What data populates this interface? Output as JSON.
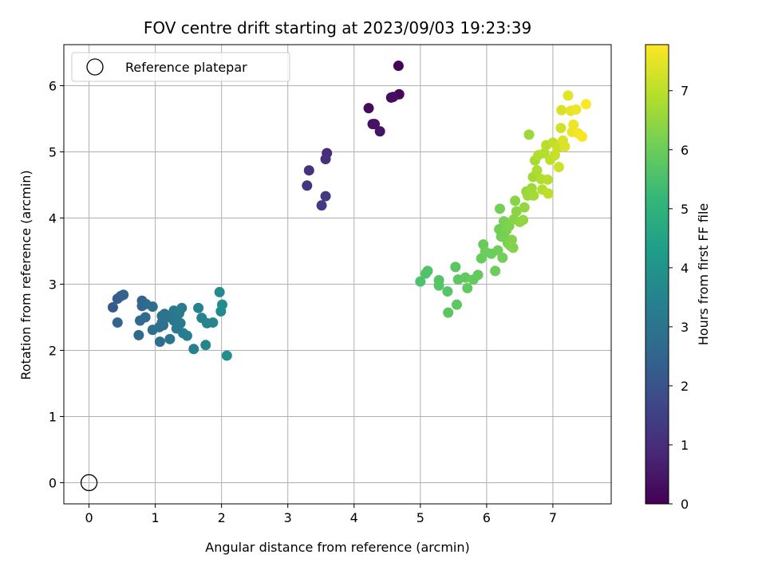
{
  "chart_data": {
    "type": "scatter",
    "title": "FOV centre drift starting at 2023/09/03 19:23:39",
    "xlabel": "Angular distance from reference (arcmin)",
    "ylabel": "Rotation from reference (arcmin)",
    "xlim": [
      -0.38,
      7.88
    ],
    "ylim": [
      -0.32,
      6.62
    ],
    "xticks": [
      "0",
      "1",
      "2",
      "3",
      "4",
      "5",
      "6",
      "7"
    ],
    "yticks": [
      "0",
      "1",
      "2",
      "3",
      "4",
      "5",
      "6"
    ],
    "grid": true,
    "legend": {
      "position": "top-left",
      "entries": [
        {
          "label": "Reference platepar",
          "marker": "open-circle",
          "x": 0,
          "y": 0
        }
      ]
    },
    "colorbar": {
      "label": "Hours from first FF file",
      "colormap": "viridis",
      "range": [
        0,
        7.78
      ],
      "ticks": [
        "0",
        "1",
        "2",
        "3",
        "4",
        "5",
        "6",
        "7"
      ]
    },
    "series": [
      {
        "points": [
          {
            "x": 4.22,
            "y": 5.66,
            "c": 0.2
          },
          {
            "x": 4.67,
            "y": 6.3,
            "c": 0.05
          },
          {
            "x": 4.28,
            "y": 5.42,
            "c": 0.35
          },
          {
            "x": 4.31,
            "y": 5.42,
            "c": 0.38
          },
          {
            "x": 4.39,
            "y": 5.31,
            "c": 0.42
          },
          {
            "x": 4.56,
            "y": 5.82,
            "c": 0.25
          },
          {
            "x": 4.68,
            "y": 5.87,
            "c": 0.15
          },
          {
            "x": 4.59,
            "y": 5.83,
            "c": 0.28
          },
          {
            "x": 3.32,
            "y": 4.72,
            "c": 1.1
          },
          {
            "x": 3.29,
            "y": 4.49,
            "c": 1.2
          },
          {
            "x": 3.59,
            "y": 4.98,
            "c": 1.0
          },
          {
            "x": 3.57,
            "y": 4.89,
            "c": 1.05
          },
          {
            "x": 3.57,
            "y": 4.33,
            "c": 1.3
          },
          {
            "x": 3.51,
            "y": 4.19,
            "c": 1.35
          },
          {
            "x": 0.36,
            "y": 2.65,
            "c": 2.2
          },
          {
            "x": 0.43,
            "y": 2.78,
            "c": 2.3
          },
          {
            "x": 0.48,
            "y": 2.82,
            "c": 2.35
          },
          {
            "x": 0.52,
            "y": 2.84,
            "c": 2.4
          },
          {
            "x": 0.43,
            "y": 2.42,
            "c": 2.5
          },
          {
            "x": 0.8,
            "y": 2.75,
            "c": 2.5
          },
          {
            "x": 0.8,
            "y": 2.67,
            "c": 2.55
          },
          {
            "x": 0.86,
            "y": 2.7,
            "c": 2.6
          },
          {
            "x": 0.77,
            "y": 2.45,
            "c": 2.65
          },
          {
            "x": 0.85,
            "y": 2.5,
            "c": 2.7
          },
          {
            "x": 0.75,
            "y": 2.23,
            "c": 2.7
          },
          {
            "x": 0.96,
            "y": 2.66,
            "c": 2.75
          },
          {
            "x": 0.96,
            "y": 2.31,
            "c": 2.8
          },
          {
            "x": 1.07,
            "y": 2.13,
            "c": 2.8
          },
          {
            "x": 1.06,
            "y": 2.35,
            "c": 2.85
          },
          {
            "x": 1.1,
            "y": 2.42,
            "c": 2.9
          },
          {
            "x": 1.12,
            "y": 2.38,
            "c": 2.9
          },
          {
            "x": 1.1,
            "y": 2.52,
            "c": 2.95
          },
          {
            "x": 1.14,
            "y": 2.55,
            "c": 3.0
          },
          {
            "x": 1.2,
            "y": 2.5,
            "c": 3.0
          },
          {
            "x": 1.22,
            "y": 2.17,
            "c": 3.05
          },
          {
            "x": 1.28,
            "y": 2.6,
            "c": 3.1
          },
          {
            "x": 1.28,
            "y": 2.45,
            "c": 3.1
          },
          {
            "x": 1.32,
            "y": 2.33,
            "c": 3.15
          },
          {
            "x": 1.36,
            "y": 2.56,
            "c": 3.2
          },
          {
            "x": 1.38,
            "y": 2.41,
            "c": 3.2
          },
          {
            "x": 1.4,
            "y": 2.64,
            "c": 3.25
          },
          {
            "x": 1.42,
            "y": 2.26,
            "c": 3.3
          },
          {
            "x": 1.48,
            "y": 2.22,
            "c": 3.3
          },
          {
            "x": 1.58,
            "y": 2.02,
            "c": 3.4
          },
          {
            "x": 1.65,
            "y": 2.64,
            "c": 3.45
          },
          {
            "x": 1.7,
            "y": 2.49,
            "c": 3.5
          },
          {
            "x": 1.78,
            "y": 2.41,
            "c": 3.55
          },
          {
            "x": 1.76,
            "y": 2.08,
            "c": 3.55
          },
          {
            "x": 1.87,
            "y": 2.42,
            "c": 3.6
          },
          {
            "x": 1.97,
            "y": 2.88,
            "c": 3.7
          },
          {
            "x": 1.99,
            "y": 2.59,
            "c": 3.75
          },
          {
            "x": 2.01,
            "y": 2.69,
            "c": 3.8
          },
          {
            "x": 2.08,
            "y": 1.92,
            "c": 3.85
          },
          {
            "x": 5.0,
            "y": 3.04,
            "c": 5.55
          },
          {
            "x": 5.08,
            "y": 3.16,
            "c": 5.6
          },
          {
            "x": 5.11,
            "y": 3.2,
            "c": 5.6
          },
          {
            "x": 5.28,
            "y": 3.06,
            "c": 5.65
          },
          {
            "x": 5.28,
            "y": 2.98,
            "c": 5.7
          },
          {
            "x": 5.41,
            "y": 2.89,
            "c": 5.7
          },
          {
            "x": 5.42,
            "y": 2.57,
            "c": 5.75
          },
          {
            "x": 5.53,
            "y": 3.26,
            "c": 5.75
          },
          {
            "x": 5.55,
            "y": 2.69,
            "c": 5.8
          },
          {
            "x": 5.57,
            "y": 3.07,
            "c": 5.8
          },
          {
            "x": 5.68,
            "y": 3.1,
            "c": 5.85
          },
          {
            "x": 5.71,
            "y": 2.94,
            "c": 5.85
          },
          {
            "x": 5.8,
            "y": 3.07,
            "c": 5.9
          },
          {
            "x": 5.87,
            "y": 3.14,
            "c": 5.9
          },
          {
            "x": 5.92,
            "y": 3.39,
            "c": 5.95
          },
          {
            "x": 5.95,
            "y": 3.6,
            "c": 5.95
          },
          {
            "x": 5.98,
            "y": 3.49,
            "c": 6.0
          },
          {
            "x": 6.07,
            "y": 3.46,
            "c": 6.0
          },
          {
            "x": 6.13,
            "y": 3.2,
            "c": 6.0
          },
          {
            "x": 6.17,
            "y": 3.51,
            "c": 6.05
          },
          {
            "x": 6.19,
            "y": 3.83,
            "c": 6.05
          },
          {
            "x": 6.2,
            "y": 4.14,
            "c": 6.1
          },
          {
            "x": 6.22,
            "y": 3.72,
            "c": 6.1
          },
          {
            "x": 6.24,
            "y": 3.4,
            "c": 6.1
          },
          {
            "x": 6.26,
            "y": 3.95,
            "c": 6.15
          },
          {
            "x": 6.28,
            "y": 3.7,
            "c": 6.15
          },
          {
            "x": 6.3,
            "y": 3.82,
            "c": 6.2
          },
          {
            "x": 6.32,
            "y": 3.62,
            "c": 6.2
          },
          {
            "x": 6.34,
            "y": 3.88,
            "c": 6.25
          },
          {
            "x": 6.36,
            "y": 3.58,
            "c": 6.25
          },
          {
            "x": 6.38,
            "y": 3.67,
            "c": 6.3
          },
          {
            "x": 6.4,
            "y": 3.55,
            "c": 6.3
          },
          {
            "x": 6.41,
            "y": 3.98,
            "c": 6.35
          },
          {
            "x": 6.43,
            "y": 4.26,
            "c": 6.35
          },
          {
            "x": 6.45,
            "y": 4.1,
            "c": 6.4
          },
          {
            "x": 6.5,
            "y": 3.94,
            "c": 6.45
          },
          {
            "x": 6.55,
            "y": 3.97,
            "c": 6.5
          },
          {
            "x": 6.57,
            "y": 4.16,
            "c": 6.5
          },
          {
            "x": 6.6,
            "y": 4.4,
            "c": 6.55
          },
          {
            "x": 6.62,
            "y": 4.34,
            "c": 6.6
          },
          {
            "x": 6.64,
            "y": 5.26,
            "c": 6.6
          },
          {
            "x": 6.68,
            "y": 4.45,
            "c": 6.65
          },
          {
            "x": 6.7,
            "y": 4.62,
            "c": 6.7
          },
          {
            "x": 6.71,
            "y": 4.34,
            "c": 6.7
          },
          {
            "x": 6.73,
            "y": 4.87,
            "c": 6.75
          },
          {
            "x": 6.76,
            "y": 4.72,
            "c": 6.8
          },
          {
            "x": 6.78,
            "y": 4.95,
            "c": 6.85
          },
          {
            "x": 6.82,
            "y": 4.59,
            "c": 6.85
          },
          {
            "x": 6.84,
            "y": 4.43,
            "c": 6.9
          },
          {
            "x": 6.87,
            "y": 4.98,
            "c": 6.9
          },
          {
            "x": 6.9,
            "y": 5.1,
            "c": 6.95
          },
          {
            "x": 6.92,
            "y": 4.58,
            "c": 6.95
          },
          {
            "x": 6.93,
            "y": 4.37,
            "c": 7.0
          },
          {
            "x": 6.96,
            "y": 4.88,
            "c": 7.0
          },
          {
            "x": 7.0,
            "y": 5.14,
            "c": 7.05
          },
          {
            "x": 7.03,
            "y": 4.95,
            "c": 7.1
          },
          {
            "x": 7.07,
            "y": 5.06,
            "c": 7.15
          },
          {
            "x": 7.09,
            "y": 4.77,
            "c": 7.2
          },
          {
            "x": 7.12,
            "y": 5.36,
            "c": 7.25
          },
          {
            "x": 7.13,
            "y": 5.63,
            "c": 7.3
          },
          {
            "x": 7.15,
            "y": 5.17,
            "c": 7.35
          },
          {
            "x": 7.18,
            "y": 5.08,
            "c": 7.4
          },
          {
            "x": 7.23,
            "y": 5.85,
            "c": 7.45
          },
          {
            "x": 7.27,
            "y": 5.62,
            "c": 7.5
          },
          {
            "x": 7.29,
            "y": 5.3,
            "c": 7.55
          },
          {
            "x": 7.31,
            "y": 5.41,
            "c": 7.6
          },
          {
            "x": 7.35,
            "y": 5.64,
            "c": 7.6
          },
          {
            "x": 7.38,
            "y": 5.28,
            "c": 7.65
          },
          {
            "x": 7.44,
            "y": 5.23,
            "c": 7.7
          },
          {
            "x": 7.5,
            "y": 5.72,
            "c": 7.75
          }
        ]
      }
    ]
  }
}
